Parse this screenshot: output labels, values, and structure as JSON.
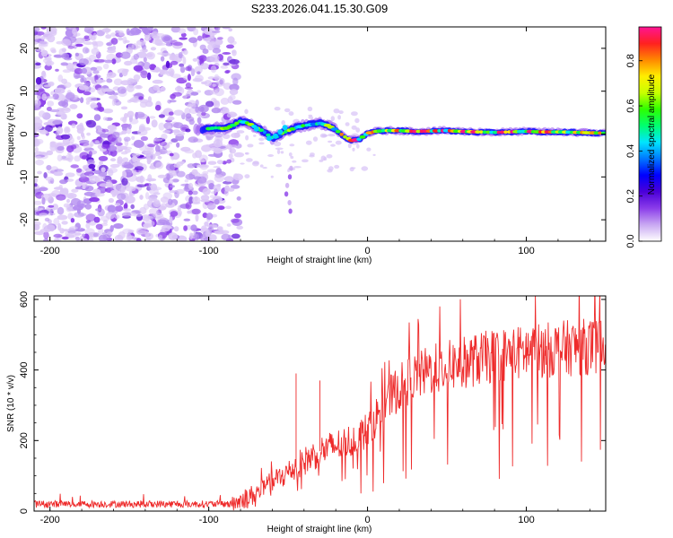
{
  "title": "S233.2026.041.15.30.G09",
  "chart_data": [
    {
      "type": "heatmap",
      "name": "spectrogram",
      "xlabel": "Height of straight line (km)",
      "ylabel": "Frequency (Hz)",
      "xlim": [
        -210,
        150
      ],
      "ylim": [
        -25,
        25
      ],
      "xticks": [
        -200,
        -100,
        0,
        100
      ],
      "yticks": [
        -20,
        -10,
        0,
        10,
        20
      ],
      "ridge": {
        "description": "dominant frequency track",
        "x": [
          -105,
          -95,
          -90,
          -85,
          -80,
          -75,
          -70,
          -65,
          -60,
          -55,
          -50,
          -45,
          -40,
          -35,
          -30,
          -25,
          -20,
          -15,
          -10,
          -5,
          0,
          5,
          10,
          20,
          30,
          40,
          50,
          60,
          70,
          80,
          90,
          100,
          110,
          120,
          130,
          140,
          150
        ],
        "y": [
          1.0,
          1.5,
          1.2,
          2.0,
          3.0,
          2.5,
          1.5,
          0.5,
          -1.0,
          0.0,
          0.8,
          1.5,
          2.0,
          2.2,
          2.5,
          2.0,
          1.0,
          -0.5,
          -1.5,
          -1.2,
          0.2,
          0.6,
          0.8,
          0.8,
          0.6,
          0.7,
          0.8,
          0.6,
          0.5,
          0.4,
          0.5,
          0.6,
          0.5,
          0.5,
          0.4,
          0.3,
          0.2
        ]
      },
      "colorbar": {
        "label": "Normalized spectral amplitude",
        "range": [
          0.0,
          0.95
        ],
        "ticks": [
          "0.0",
          "0.2",
          "0.4",
          "0.6",
          "0.8"
        ],
        "colormap": [
          "#ffffff",
          "#c9a8f2",
          "#8b3dea",
          "#4b00d8",
          "#0000ff",
          "#0077ff",
          "#00e5ff",
          "#00ff70",
          "#2dff00",
          "#c8ff00",
          "#ffee00",
          "#ff8800",
          "#ff2020",
          "#ff1493"
        ]
      }
    },
    {
      "type": "line",
      "name": "snr",
      "xlabel": "Height of straight line (km)",
      "ylabel": "SNR (10 * v/v)",
      "xlim": [
        -210,
        150
      ],
      "ylim": [
        0,
        610
      ],
      "xticks": [
        -200,
        -100,
        0,
        100
      ],
      "yticks": [
        0,
        200,
        400,
        600
      ],
      "color": "#ee2b2b",
      "trend": {
        "x": [
          -210,
          -85,
          -70,
          -50,
          -30,
          -10,
          0,
          10,
          20,
          30,
          40,
          60,
          80,
          100,
          120,
          150
        ],
        "y": [
          20,
          20,
          50,
          110,
          170,
          200,
          230,
          300,
          350,
          380,
          400,
          420,
          440,
          450,
          460,
          470
        ]
      }
    }
  ]
}
